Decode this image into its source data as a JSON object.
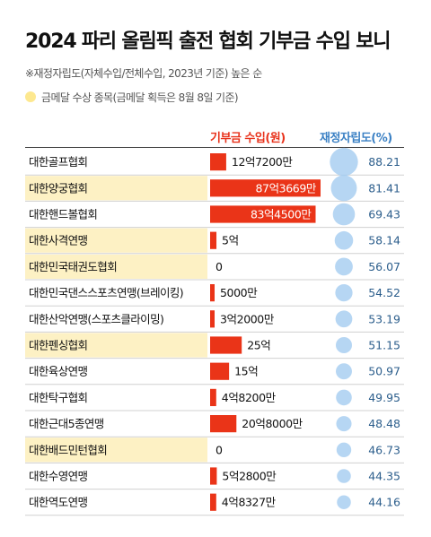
{
  "title": "2024 파리 올림픽 출전 협회 기부금 수입 보니",
  "note": "※재정자립도(자체수입/전체수입, 2023년 기준) 높은 순",
  "legend": "금메달 수상 종목(금메달 획득은 8월 8일 기준)",
  "colors": {
    "bar": "#ea3418",
    "highlight": "#fdf1c4",
    "bubble": "#a6cdf0",
    "ratio_text": "#2c5e8c"
  },
  "chart_data": {
    "type": "bar",
    "title": "2024 파리 올림픽 출전 협회 기부금 수입 보니",
    "column_headers": [
      "기부금 수입(원)",
      "재정자립도(%)"
    ],
    "rows": [
      {
        "name": "대한골프협회",
        "donation_label": "12억7200만",
        "donation": 127200,
        "ratio": 88.21,
        "ratio_label": "88.21",
        "gold": false
      },
      {
        "name": "대한양궁협회",
        "donation_label": "87억3669만",
        "donation": 873669,
        "ratio": 81.41,
        "ratio_label": "81.41",
        "gold": true
      },
      {
        "name": "대한핸드볼협회",
        "donation_label": "83억4500만",
        "donation": 834500,
        "ratio": 69.43,
        "ratio_label": "69.43",
        "gold": false
      },
      {
        "name": "대한사격연맹",
        "donation_label": "5억",
        "donation": 50000,
        "ratio": 58.14,
        "ratio_label": "58.14",
        "gold": true
      },
      {
        "name": "대한민국태권도협회",
        "donation_label": "0",
        "donation": 0,
        "ratio": 56.07,
        "ratio_label": "56.07",
        "gold": true
      },
      {
        "name": "대한민국댄스스포츠연맹(브레이킹)",
        "donation_label": "5000만",
        "donation": 5000,
        "ratio": 54.52,
        "ratio_label": "54.52",
        "gold": false
      },
      {
        "name": "대한산악연맹(스포츠클라이밍)",
        "donation_label": "3억2000만",
        "donation": 32000,
        "ratio": 53.19,
        "ratio_label": "53.19",
        "gold": false
      },
      {
        "name": "대한펜싱협회",
        "donation_label": "25억",
        "donation": 250000,
        "ratio": 51.15,
        "ratio_label": "51.15",
        "gold": true
      },
      {
        "name": "대한육상연맹",
        "donation_label": "15억",
        "donation": 150000,
        "ratio": 50.97,
        "ratio_label": "50.97",
        "gold": false
      },
      {
        "name": "대한탁구협회",
        "donation_label": "4억8200만",
        "donation": 48200,
        "ratio": 49.95,
        "ratio_label": "49.95",
        "gold": false
      },
      {
        "name": "대한근대5종연맹",
        "donation_label": "20억8000만",
        "donation": 208000,
        "ratio": 48.48,
        "ratio_label": "48.48",
        "gold": false
      },
      {
        "name": "대한배드민턴협회",
        "donation_label": "0",
        "donation": 0,
        "ratio": 46.73,
        "ratio_label": "46.73",
        "gold": true
      },
      {
        "name": "대한수영연맹",
        "donation_label": "5억2800만",
        "donation": 52800,
        "ratio": 44.35,
        "ratio_label": "44.35",
        "gold": false
      },
      {
        "name": "대한역도연맹",
        "donation_label": "4억8327만",
        "donation": 48327,
        "ratio": 44.16,
        "ratio_label": "44.16",
        "gold": false
      }
    ]
  }
}
